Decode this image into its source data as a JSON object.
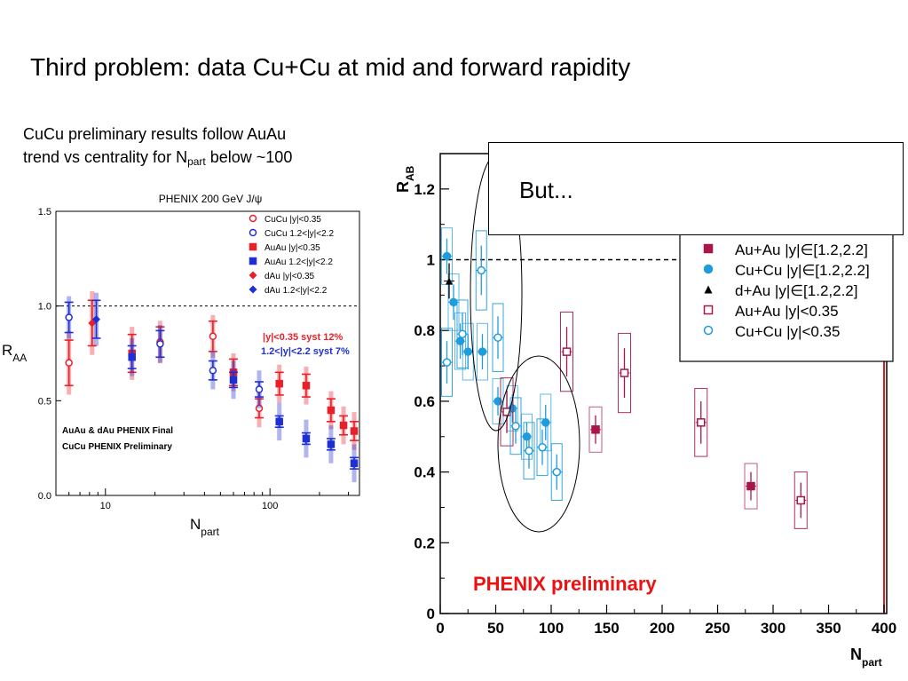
{
  "slide": {
    "title": "Third problem: data Cu+Cu at mid and forward rapidity",
    "intro_line1": "CuCu preliminary results follow AuAu",
    "intro_line2_pre": "trend vs  centrality for N",
    "intro_line2_sub": "part",
    "intro_line2_post": " below ~100",
    "callout": "But..."
  },
  "chart_data": [
    {
      "type": "scatter",
      "title": "PHENIX 200 GeV J/ψ",
      "xlabel": "N",
      "xlabel_sub": "part",
      "ylabel": "R",
      "ylabel_sub": "AA",
      "x_scale": "log",
      "xlim": [
        5,
        350
      ],
      "ylim": [
        0,
        1.5
      ],
      "x_tick_labels": [
        "10",
        "100"
      ],
      "y_tick_labels": [
        "0.0",
        "0.5",
        "1.0",
        "1.5"
      ],
      "reference_line": 1.0,
      "syst_labels": [
        "|y|<0.35 syst 12%",
        "1.2<|y|<2.2 syst 7%"
      ],
      "annotation_line1": "AuAu & dAu PHENIX Final",
      "annotation_line2": "CuCu PHENIX Preliminary",
      "legend_position": "top-right",
      "series": [
        {
          "name": "CuCu |y|<0.35",
          "marker": "open-circle",
          "color": "#e8202a",
          "x": [
            6,
            21.5,
            45,
            86
          ],
          "y": [
            0.7,
            0.81,
            0.84,
            0.46
          ],
          "err": [
            0.12,
            0.08,
            0.08,
            0.05
          ]
        },
        {
          "name": "CuCu 1.2<|y|<2.2",
          "marker": "open-circle",
          "color": "#1f2fd6",
          "x": [
            6,
            21.5,
            45,
            86
          ],
          "y": [
            0.94,
            0.8,
            0.66,
            0.56
          ],
          "err": [
            0.08,
            0.07,
            0.05,
            0.04
          ]
        },
        {
          "name": "AuAu |y|<0.35",
          "marker": "filled-square",
          "color": "#e8202a",
          "x": [
            14.5,
            60,
            114,
            166,
            235,
            280,
            325
          ],
          "y": [
            0.75,
            0.65,
            0.59,
            0.58,
            0.45,
            0.37,
            0.34
          ],
          "err": [
            0.1,
            0.07,
            0.06,
            0.06,
            0.06,
            0.05,
            0.05
          ]
        },
        {
          "name": "AuAu 1.2<|y|<2.2",
          "marker": "filled-square",
          "color": "#1f2fd6",
          "x": [
            14.5,
            60,
            114,
            166,
            235,
            325
          ],
          "y": [
            0.73,
            0.61,
            0.39,
            0.3,
            0.27,
            0.17
          ],
          "err": [
            0.06,
            0.04,
            0.03,
            0.03,
            0.03,
            0.03
          ]
        },
        {
          "name": "dAu |y|<0.35",
          "marker": "filled-diamond",
          "color": "#e8202a",
          "x": [
            8.3
          ],
          "y": [
            0.91
          ],
          "err": [
            0.12
          ]
        },
        {
          "name": "dAu 1.2<|y|<2.2",
          "marker": "filled-diamond",
          "color": "#1f2fd6",
          "x": [
            8.8
          ],
          "y": [
            0.93
          ],
          "err": [
            0.1
          ]
        }
      ]
    },
    {
      "type": "scatter",
      "title": "",
      "xlabel": "N",
      "xlabel_sub": "part",
      "ylabel": "R",
      "ylabel_sub": "AB",
      "xlim": [
        0,
        400
      ],
      "ylim": [
        0,
        1.3
      ],
      "x_tick_labels": [
        "0",
        "50",
        "100",
        "150",
        "200",
        "250",
        "300",
        "350",
        "400"
      ],
      "y_tick_labels": [
        "0",
        "0.2",
        "0.4",
        "0.6",
        "0.8",
        "1",
        "1.2"
      ],
      "reference_line": 1.0,
      "watermark": "PHENIX preliminary",
      "legend_position": "top-right",
      "series": [
        {
          "name": "Au+Au |y|∈[1.2,2.2]",
          "marker": "filled-square",
          "color": "#a8164a",
          "x": [
            140,
            280
          ],
          "y": [
            0.52,
            0.36
          ],
          "err": [
            0.04,
            0.04
          ]
        },
        {
          "name": "Cu+Cu |y|∈[1.2,2.2]",
          "marker": "filled-circle",
          "color": "#1e9cdb",
          "x": [
            6,
            12,
            18,
            25,
            38,
            52,
            65,
            78,
            95
          ],
          "y": [
            1.01,
            0.88,
            0.77,
            0.74,
            0.74,
            0.6,
            0.58,
            0.5,
            0.54
          ],
          "err": [
            0.05,
            0.05,
            0.05,
            0.05,
            0.05,
            0.04,
            0.04,
            0.04,
            0.05
          ]
        },
        {
          "name": "d+Au |y|∈[1.2,2.2]",
          "marker": "filled-triangle",
          "color": "#000000",
          "x": [
            8
          ],
          "y": [
            0.94
          ],
          "err": [
            0.05
          ]
        },
        {
          "name": "Au+Au |y|<0.35",
          "marker": "open-square",
          "color": "#a8164a",
          "x": [
            60,
            114,
            166,
            235,
            325
          ],
          "y": [
            0.57,
            0.74,
            0.68,
            0.54,
            0.32
          ],
          "err": [
            0.06,
            0.07,
            0.07,
            0.06,
            0.05
          ]
        },
        {
          "name": "Cu+Cu |y|<0.35",
          "marker": "open-circle",
          "color": "#1e9cdb",
          "x": [
            6,
            20,
            37,
            52,
            68,
            80,
            92,
            105
          ],
          "y": [
            0.71,
            0.79,
            0.97,
            0.78,
            0.53,
            0.46,
            0.47,
            0.4
          ],
          "err": [
            0.06,
            0.06,
            0.07,
            0.06,
            0.05,
            0.05,
            0.05,
            0.05
          ]
        }
      ]
    }
  ]
}
